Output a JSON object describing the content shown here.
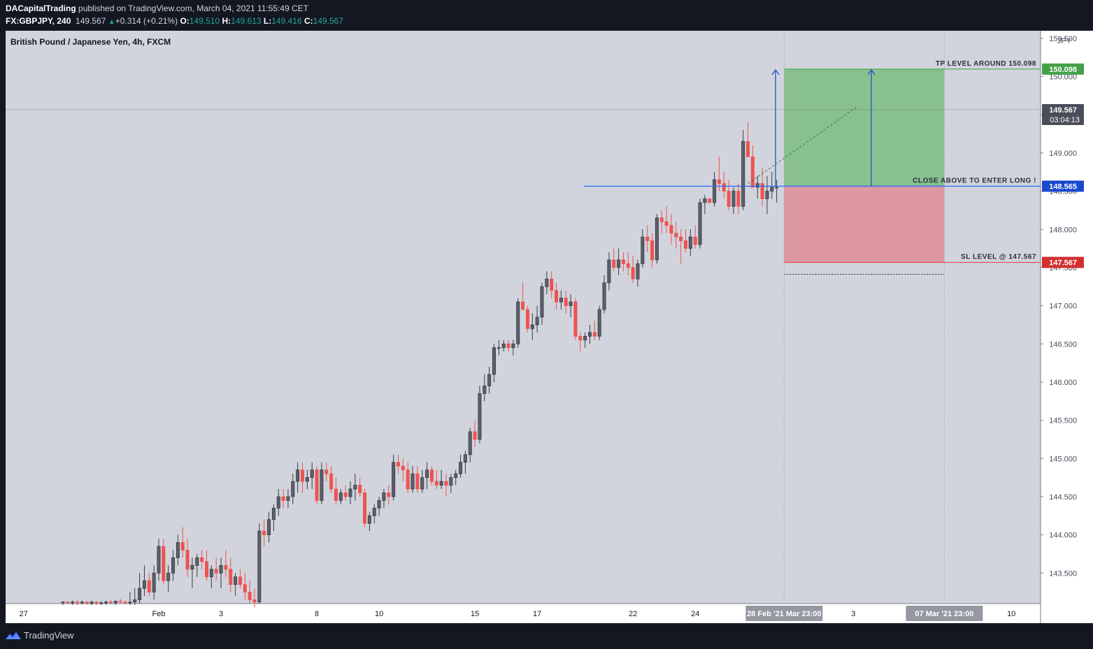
{
  "header": {
    "publisher": "DACapitalTrading",
    "published_text": " published on TradingView.com, March 04, 2021 11:55:49 CET",
    "symbol": "FX:GBPJPY, 240",
    "last": "149.567",
    "change": "+0.314 (+0.21%)",
    "o_label": "O:",
    "o_value": "149.510",
    "h_label": "H:",
    "h_value": "149.613",
    "l_label": "L:",
    "l_value": "149.416",
    "c_label": "C:",
    "c_value": "149.567"
  },
  "footer": {
    "brand": "TradingView"
  },
  "colors": {
    "background": "#d1d4dc",
    "bull": "#363a45",
    "bear": "#ef5350",
    "target_zone": "#4caf50",
    "stop_zone": "#f23645",
    "entry_line": "#2962ff",
    "axis_bg": "#ffffff",
    "sl_label": "#d32f2f",
    "tp_label": "#43a047",
    "entry_label": "#1848cc",
    "price_label": "#4a4e5a"
  },
  "chart_data": {
    "type": "candlestick",
    "title": "British Pound / Japanese Yen, 4h, FXCM",
    "currency": "JPY",
    "ylim": [
      143.1,
      150.6
    ],
    "y_ticks": [
      "143.500",
      "144.000",
      "144.500",
      "145.000",
      "145.500",
      "146.000",
      "146.500",
      "147.000",
      "147.500",
      "148.000",
      "148.500",
      "149.000",
      "149.500",
      "150.000",
      "150.500"
    ],
    "x_ticks": [
      "27",
      "Feb",
      "3",
      "8",
      "10",
      "15",
      "17",
      "22",
      "24",
      "3",
      "10"
    ],
    "x_tick_bar_index": [
      2,
      20,
      33,
      53,
      66,
      86,
      99,
      119,
      132,
      165,
      198
    ],
    "last_price": 149.567,
    "countdown": "03:04:13",
    "crosshair_labels": [
      "28 Feb '21",
      "Mar",
      "23:00",
      "07 Mar '21",
      "23:00"
    ],
    "levels": {
      "take_profit": 150.098,
      "entry": 148.565,
      "stop_loss": 147.567,
      "tp_text": "TP LEVEL AROUND 150.098",
      "entry_text": "CLOSE ABOVE TO ENTER LONG !",
      "sl_text": "SL LEVEL @ 147.567"
    },
    "position_zone": {
      "start_bar": 151,
      "end_bar": 184
    },
    "candles": [
      [
        143.12,
        143.13,
        143.08,
        143.12
      ],
      [
        143.12,
        143.13,
        143.1,
        143.11
      ],
      [
        143.11,
        143.14,
        143.08,
        143.12
      ],
      [
        143.12,
        143.15,
        143.08,
        143.11
      ],
      [
        143.11,
        143.14,
        143.09,
        143.12
      ],
      [
        143.12,
        143.13,
        143.08,
        143.1
      ],
      [
        143.1,
        143.14,
        143.08,
        143.12
      ],
      [
        143.12,
        143.13,
        143.08,
        143.1
      ],
      [
        143.1,
        143.13,
        143.08,
        143.11
      ],
      [
        143.11,
        143.14,
        143.08,
        143.12
      ],
      [
        143.12,
        143.15,
        143.1,
        143.11
      ],
      [
        143.11,
        143.14,
        143.08,
        143.13
      ],
      [
        143.13,
        143.16,
        143.1,
        143.12
      ],
      [
        143.12,
        143.14,
        143.09,
        143.11
      ],
      [
        143.11,
        143.25,
        143.08,
        143.12
      ],
      [
        143.12,
        143.3,
        143.08,
        143.15
      ],
      [
        143.15,
        143.5,
        143.1,
        143.3
      ],
      [
        143.3,
        143.6,
        143.2,
        143.4
      ],
      [
        143.4,
        143.5,
        143.2,
        143.25
      ],
      [
        143.25,
        143.6,
        143.15,
        143.5
      ],
      [
        143.5,
        143.95,
        143.4,
        143.85
      ],
      [
        143.85,
        143.95,
        143.35,
        143.4
      ],
      [
        143.4,
        143.6,
        143.25,
        143.5
      ],
      [
        143.5,
        143.8,
        143.4,
        143.7
      ],
      [
        143.7,
        144.0,
        143.6,
        143.9
      ],
      [
        143.9,
        144.1,
        143.7,
        143.8
      ],
      [
        143.8,
        143.95,
        143.45,
        143.55
      ],
      [
        143.55,
        143.7,
        143.3,
        143.6
      ],
      [
        143.6,
        143.75,
        143.45,
        143.7
      ],
      [
        143.7,
        143.8,
        143.55,
        143.65
      ],
      [
        143.65,
        143.8,
        143.4,
        143.45
      ],
      [
        143.45,
        143.6,
        143.3,
        143.55
      ],
      [
        143.55,
        143.7,
        143.4,
        143.5
      ],
      [
        143.5,
        143.7,
        143.3,
        143.6
      ],
      [
        143.6,
        143.8,
        143.45,
        143.55
      ],
      [
        143.55,
        143.7,
        143.25,
        143.35
      ],
      [
        143.35,
        143.5,
        143.2,
        143.45
      ],
      [
        143.45,
        143.55,
        143.3,
        143.35
      ],
      [
        143.35,
        143.5,
        143.15,
        143.25
      ],
      [
        143.25,
        143.4,
        143.1,
        143.15
      ],
      [
        143.15,
        143.3,
        143.05,
        143.12
      ],
      [
        143.12,
        144.15,
        143.1,
        144.05
      ],
      [
        144.05,
        144.2,
        143.85,
        144.0
      ],
      [
        144.0,
        144.3,
        143.9,
        144.2
      ],
      [
        144.2,
        144.4,
        144.05,
        144.35
      ],
      [
        144.35,
        144.6,
        144.25,
        144.5
      ],
      [
        144.5,
        144.6,
        144.35,
        144.45
      ],
      [
        144.45,
        144.6,
        144.35,
        144.5
      ],
      [
        144.5,
        144.8,
        144.4,
        144.7
      ],
      [
        144.7,
        144.95,
        144.55,
        144.85
      ],
      [
        144.85,
        144.95,
        144.55,
        144.7
      ],
      [
        144.7,
        144.85,
        144.6,
        144.75
      ],
      [
        144.75,
        144.95,
        144.6,
        144.85
      ],
      [
        144.85,
        144.9,
        144.4,
        144.45
      ],
      [
        144.45,
        144.95,
        144.4,
        144.85
      ],
      [
        144.85,
        144.95,
        144.7,
        144.8
      ],
      [
        144.8,
        144.9,
        144.55,
        144.6
      ],
      [
        144.6,
        144.75,
        144.4,
        144.45
      ],
      [
        144.45,
        144.6,
        144.4,
        144.55
      ],
      [
        144.55,
        144.65,
        144.45,
        144.5
      ],
      [
        144.5,
        144.7,
        144.4,
        144.6
      ],
      [
        144.6,
        144.8,
        144.45,
        144.65
      ],
      [
        144.65,
        144.75,
        144.5,
        144.55
      ],
      [
        144.55,
        144.6,
        144.1,
        144.15
      ],
      [
        144.15,
        144.3,
        144.05,
        144.25
      ],
      [
        144.25,
        144.4,
        144.15,
        144.35
      ],
      [
        144.35,
        144.5,
        144.25,
        144.45
      ],
      [
        144.45,
        144.6,
        144.35,
        144.55
      ],
      [
        144.55,
        144.65,
        144.4,
        144.5
      ],
      [
        144.5,
        145.05,
        144.45,
        144.95
      ],
      [
        144.95,
        145.05,
        144.8,
        144.9
      ],
      [
        144.9,
        145.0,
        144.7,
        144.85
      ],
      [
        144.85,
        144.95,
        144.55,
        144.6
      ],
      [
        144.6,
        144.9,
        144.55,
        144.8
      ],
      [
        144.8,
        144.9,
        144.55,
        144.6
      ],
      [
        144.6,
        144.85,
        144.55,
        144.75
      ],
      [
        144.75,
        144.95,
        144.6,
        144.85
      ],
      [
        144.85,
        144.9,
        144.65,
        144.7
      ],
      [
        144.7,
        144.85,
        144.6,
        144.65
      ],
      [
        144.65,
        144.85,
        144.6,
        144.7
      ],
      [
        144.7,
        144.8,
        144.5,
        144.65
      ],
      [
        144.65,
        144.8,
        144.55,
        144.75
      ],
      [
        144.75,
        144.85,
        144.65,
        144.8
      ],
      [
        144.8,
        145.05,
        144.75,
        144.95
      ],
      [
        144.95,
        145.1,
        144.8,
        145.05
      ],
      [
        145.05,
        145.4,
        144.95,
        145.35
      ],
      [
        145.35,
        145.5,
        145.15,
        145.25
      ],
      [
        145.25,
        145.95,
        145.2,
        145.85
      ],
      [
        145.85,
        146.1,
        145.75,
        145.95
      ],
      [
        145.95,
        146.2,
        145.85,
        146.1
      ],
      [
        146.1,
        146.5,
        146.0,
        146.45
      ],
      [
        146.45,
        146.55,
        146.35,
        146.45
      ],
      [
        146.45,
        146.55,
        146.4,
        146.5
      ],
      [
        146.5,
        146.55,
        146.4,
        146.45
      ],
      [
        146.45,
        146.55,
        146.35,
        146.5
      ],
      [
        146.5,
        147.1,
        146.45,
        147.05
      ],
      [
        147.05,
        147.3,
        146.95,
        146.95
      ],
      [
        146.95,
        147.0,
        146.65,
        146.7
      ],
      [
        146.7,
        146.9,
        146.55,
        146.75
      ],
      [
        146.75,
        147.0,
        146.65,
        146.85
      ],
      [
        146.85,
        147.3,
        146.75,
        147.25
      ],
      [
        147.25,
        147.45,
        147.15,
        147.35
      ],
      [
        147.35,
        147.45,
        147.1,
        147.2
      ],
      [
        147.2,
        147.3,
        146.95,
        147.05
      ],
      [
        147.05,
        147.2,
        146.95,
        147.1
      ],
      [
        147.1,
        147.2,
        146.9,
        147.0
      ],
      [
        147.0,
        147.15,
        146.85,
        147.05
      ],
      [
        147.05,
        147.1,
        146.55,
        146.6
      ],
      [
        146.6,
        146.65,
        146.4,
        146.55
      ],
      [
        146.55,
        146.65,
        146.45,
        146.6
      ],
      [
        146.6,
        146.75,
        146.5,
        146.65
      ],
      [
        146.65,
        146.8,
        146.55,
        146.6
      ],
      [
        146.6,
        147.0,
        146.55,
        146.95
      ],
      [
        146.95,
        147.4,
        146.9,
        147.3
      ],
      [
        147.3,
        147.7,
        147.2,
        147.6
      ],
      [
        147.6,
        147.75,
        147.45,
        147.5
      ],
      [
        147.5,
        147.75,
        147.4,
        147.6
      ],
      [
        147.6,
        147.7,
        147.45,
        147.55
      ],
      [
        147.55,
        147.7,
        147.4,
        147.5
      ],
      [
        147.5,
        147.65,
        147.3,
        147.35
      ],
      [
        147.35,
        147.6,
        147.25,
        147.55
      ],
      [
        147.55,
        148.0,
        147.5,
        147.9
      ],
      [
        147.9,
        148.05,
        147.7,
        147.85
      ],
      [
        147.85,
        147.95,
        147.5,
        147.6
      ],
      [
        147.6,
        148.2,
        147.55,
        148.15
      ],
      [
        148.15,
        148.25,
        147.95,
        148.1
      ],
      [
        148.1,
        148.3,
        147.95,
        148.05
      ],
      [
        148.05,
        148.2,
        147.8,
        147.95
      ],
      [
        147.95,
        148.1,
        147.75,
        147.9
      ],
      [
        147.9,
        148.0,
        147.55,
        147.85
      ],
      [
        147.85,
        148.0,
        147.7,
        147.75
      ],
      [
        147.75,
        148.0,
        147.65,
        147.9
      ],
      [
        147.9,
        148.05,
        147.75,
        147.8
      ],
      [
        147.8,
        148.4,
        147.75,
        148.35
      ],
      [
        148.35,
        148.45,
        148.2,
        148.4
      ],
      [
        148.4,
        148.4,
        148.35,
        148.35
      ],
      [
        148.35,
        148.75,
        148.3,
        148.65
      ],
      [
        148.65,
        148.95,
        148.5,
        148.6
      ],
      [
        148.6,
        148.75,
        148.4,
        148.5
      ],
      [
        148.5,
        148.65,
        148.25,
        148.3
      ],
      [
        148.3,
        148.55,
        148.2,
        148.5
      ],
      [
        148.5,
        148.6,
        148.2,
        148.3
      ],
      [
        148.3,
        149.3,
        148.25,
        149.15
      ],
      [
        149.15,
        149.4,
        148.95,
        148.95
      ],
      [
        148.95,
        149.1,
        148.6,
        148.55
      ],
      [
        148.55,
        148.7,
        148.4,
        148.6
      ],
      [
        148.6,
        148.8,
        148.3,
        148.4
      ],
      [
        148.4,
        148.7,
        148.2,
        148.5
      ],
      [
        148.5,
        148.75,
        148.4,
        148.55
      ],
      [
        148.55,
        148.65,
        148.35,
        148.55
      ]
    ]
  }
}
